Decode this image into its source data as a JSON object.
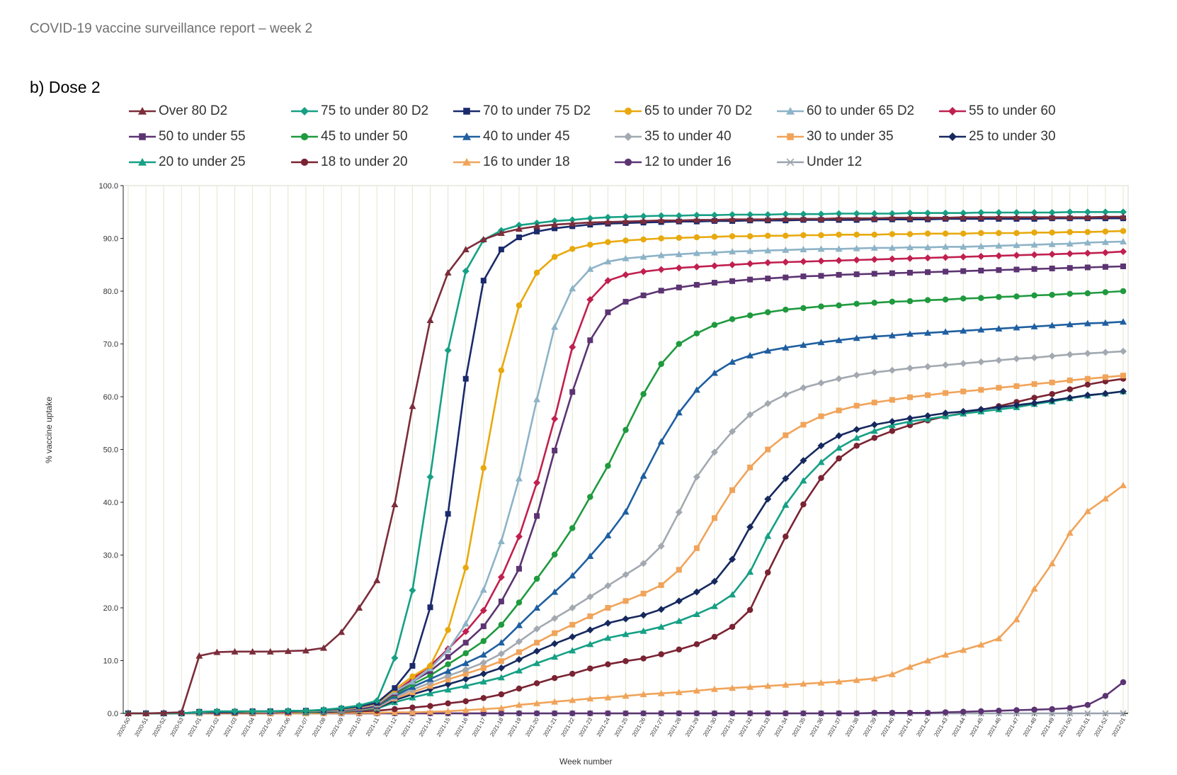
{
  "page": {
    "header": "COVID-19 vaccine surveillance report – week 2",
    "section_title": "b) Dose 2"
  },
  "chart_data": {
    "type": "line",
    "ylabel": "% vaccine uptake",
    "xlabel": "Week number",
    "ylim": [
      0,
      100
    ],
    "yticks": [
      "0.0",
      "10.0",
      "20.0",
      "30.0",
      "40.0",
      "50.0",
      "60.0",
      "70.0",
      "80.0",
      "90.0",
      "100.0"
    ],
    "grid": "vertical",
    "legend_position": "top",
    "x": [
      "2020-50",
      "2020-51",
      "2020-52",
      "2020-53",
      "2021-01",
      "2021-02",
      "2021-03",
      "2021-04",
      "2021-05",
      "2021-06",
      "2021-07",
      "2021-08",
      "2021-09",
      "2021-10",
      "2021-11",
      "2021-12",
      "2021-13",
      "2021-14",
      "2021-15",
      "2021-16",
      "2021-17",
      "2021-18",
      "2021-19",
      "2021-20",
      "2021-21",
      "2021-22",
      "2021-23",
      "2021-24",
      "2021-25",
      "2021-26",
      "2021-27",
      "2021-28",
      "2021-29",
      "2021-30",
      "2021-31",
      "2021-32",
      "2021-33",
      "2021-34",
      "2021-35",
      "2021-36",
      "2021-37",
      "2021-38",
      "2021-39",
      "2021-40",
      "2021-41",
      "2021-42",
      "2021-43",
      "2021-44",
      "2021-45",
      "2021-46",
      "2021-47",
      "2021-48",
      "2021-49",
      "2021-50",
      "2021-51",
      "2021-52",
      "2022-01"
    ],
    "series": [
      {
        "name": "Over 80 D2",
        "color": "#7b2d3a",
        "marker": "triangle",
        "values": [
          0.0,
          0.0,
          0.1,
          0.2,
          10.9,
          11.6,
          11.7,
          11.7,
          11.7,
          11.8,
          11.9,
          12.4,
          15.4,
          20.0,
          25.2,
          39.6,
          58.2,
          74.5,
          83.5,
          87.9,
          89.8,
          91.0,
          91.8,
          92.3,
          92.6,
          92.8,
          93.0,
          93.1,
          93.2,
          93.3,
          93.4,
          93.4,
          93.5,
          93.5,
          93.6,
          93.6,
          93.6,
          93.7,
          93.7,
          93.7,
          93.8,
          93.8,
          93.8,
          93.9,
          93.9,
          93.9,
          93.9,
          94.0,
          94.0,
          94.0,
          94.0,
          94.0,
          94.0,
          94.0,
          94.0,
          94.1,
          94.1
        ]
      },
      {
        "name": "75 to under 80 D2",
        "color": "#16a085",
        "marker": "diamond",
        "values": [
          0.0,
          0.0,
          0.0,
          0.0,
          0.3,
          0.4,
          0.4,
          0.4,
          0.4,
          0.5,
          0.5,
          0.7,
          1.0,
          1.5,
          2.4,
          10.5,
          23.3,
          44.8,
          68.8,
          83.8,
          89.7,
          91.5,
          92.5,
          92.9,
          93.3,
          93.5,
          93.8,
          94.0,
          94.1,
          94.2,
          94.3,
          94.3,
          94.4,
          94.4,
          94.5,
          94.5,
          94.5,
          94.6,
          94.6,
          94.6,
          94.7,
          94.7,
          94.7,
          94.7,
          94.8,
          94.8,
          94.8,
          94.8,
          94.9,
          94.9,
          94.9,
          94.9,
          94.9,
          95.0,
          95.0,
          95.0,
          95.0
        ]
      },
      {
        "name": "70 to under 75 D2",
        "color": "#1a2a6c",
        "marker": "square",
        "values": [
          0.0,
          0.0,
          0.0,
          0.0,
          0.3,
          0.3,
          0.3,
          0.4,
          0.4,
          0.4,
          0.5,
          0.6,
          0.9,
          1.3,
          2.0,
          4.8,
          9.0,
          20.1,
          37.8,
          63.4,
          82.0,
          87.9,
          90.2,
          91.3,
          91.9,
          92.3,
          92.6,
          92.8,
          92.9,
          93.0,
          93.1,
          93.2,
          93.2,
          93.3,
          93.3,
          93.4,
          93.4,
          93.4,
          93.5,
          93.5,
          93.5,
          93.5,
          93.6,
          93.6,
          93.6,
          93.6,
          93.7,
          93.7,
          93.7,
          93.7,
          93.7,
          93.7,
          93.8,
          93.8,
          93.8,
          93.8,
          93.8
        ]
      },
      {
        "name": "65 to under 70 D2",
        "color": "#e8a90e",
        "marker": "circle",
        "values": [
          0.0,
          0.0,
          0.0,
          0.0,
          0.3,
          0.3,
          0.3,
          0.3,
          0.4,
          0.4,
          0.4,
          0.6,
          0.8,
          1.2,
          1.9,
          4.5,
          7.0,
          9.0,
          15.8,
          27.6,
          46.5,
          65.0,
          77.3,
          83.5,
          86.5,
          88.0,
          88.8,
          89.3,
          89.6,
          89.8,
          90.0,
          90.1,
          90.2,
          90.3,
          90.4,
          90.4,
          90.5,
          90.5,
          90.6,
          90.6,
          90.7,
          90.7,
          90.7,
          90.8,
          90.8,
          90.9,
          90.9,
          90.9,
          91.0,
          91.0,
          91.0,
          91.1,
          91.1,
          91.2,
          91.2,
          91.3,
          91.4
        ]
      },
      {
        "name": "60 to under 65 D2",
        "color": "#8db3c7",
        "marker": "triangle",
        "values": [
          0.0,
          0.0,
          0.0,
          0.0,
          0.2,
          0.3,
          0.3,
          0.3,
          0.3,
          0.4,
          0.4,
          0.5,
          0.7,
          1.1,
          1.7,
          4.1,
          6.0,
          8.5,
          12.0,
          17.0,
          23.4,
          32.6,
          44.5,
          59.5,
          73.2,
          80.5,
          84.2,
          85.6,
          86.2,
          86.5,
          86.8,
          87.0,
          87.2,
          87.3,
          87.5,
          87.6,
          87.7,
          87.8,
          87.9,
          88.0,
          88.0,
          88.1,
          88.2,
          88.2,
          88.3,
          88.3,
          88.4,
          88.4,
          88.5,
          88.6,
          88.7,
          88.8,
          88.9,
          89.0,
          89.2,
          89.3,
          89.4
        ]
      },
      {
        "name": "55 to under 60",
        "color": "#c0204f",
        "marker": "diamond",
        "values": [
          0.0,
          0.0,
          0.0,
          0.0,
          0.2,
          0.3,
          0.3,
          0.3,
          0.3,
          0.3,
          0.4,
          0.5,
          0.7,
          1.0,
          1.6,
          4.0,
          6.5,
          9.0,
          12.2,
          15.5,
          19.5,
          25.8,
          33.5,
          43.7,
          55.8,
          69.4,
          78.4,
          82.0,
          83.1,
          83.7,
          84.1,
          84.4,
          84.6,
          84.8,
          85.0,
          85.2,
          85.4,
          85.5,
          85.6,
          85.7,
          85.8,
          85.9,
          86.0,
          86.1,
          86.2,
          86.3,
          86.4,
          86.5,
          86.6,
          86.7,
          86.8,
          86.9,
          87.0,
          87.1,
          87.2,
          87.3,
          87.5
        ]
      },
      {
        "name": "50 to under 55",
        "color": "#5c3472",
        "marker": "square",
        "values": [
          0.0,
          0.0,
          0.0,
          0.0,
          0.2,
          0.2,
          0.3,
          0.3,
          0.3,
          0.3,
          0.4,
          0.5,
          0.6,
          0.9,
          1.5,
          3.8,
          6.0,
          8.0,
          10.7,
          13.4,
          16.5,
          21.2,
          27.4,
          37.4,
          49.8,
          60.9,
          70.7,
          76.0,
          78.0,
          79.2,
          80.1,
          80.7,
          81.2,
          81.6,
          81.9,
          82.2,
          82.4,
          82.6,
          82.8,
          82.9,
          83.1,
          83.2,
          83.3,
          83.4,
          83.5,
          83.6,
          83.7,
          83.8,
          83.9,
          84.0,
          84.1,
          84.2,
          84.3,
          84.4,
          84.5,
          84.6,
          84.7
        ]
      },
      {
        "name": "45 to under 50",
        "color": "#1f9a3e",
        "marker": "circle",
        "values": [
          0.0,
          0.0,
          0.0,
          0.0,
          0.2,
          0.2,
          0.2,
          0.3,
          0.3,
          0.3,
          0.3,
          0.4,
          0.6,
          0.9,
          1.4,
          3.6,
          5.5,
          7.2,
          9.3,
          11.4,
          13.7,
          16.8,
          21.0,
          25.5,
          30.1,
          35.1,
          41.0,
          46.9,
          53.7,
          60.5,
          66.2,
          70.0,
          72.0,
          73.6,
          74.7,
          75.4,
          76.0,
          76.5,
          76.8,
          77.1,
          77.3,
          77.6,
          77.8,
          78.0,
          78.1,
          78.3,
          78.4,
          78.6,
          78.7,
          78.9,
          79.0,
          79.2,
          79.3,
          79.5,
          79.6,
          79.8,
          80.0
        ]
      },
      {
        "name": "40 to under 45",
        "color": "#1f5fa0",
        "marker": "triangle",
        "values": [
          0.0,
          0.0,
          0.0,
          0.0,
          0.2,
          0.2,
          0.2,
          0.2,
          0.3,
          0.3,
          0.3,
          0.4,
          0.6,
          0.8,
          1.3,
          3.3,
          5.0,
          6.5,
          8.0,
          9.5,
          11.1,
          13.4,
          16.7,
          20.0,
          23.0,
          26.1,
          29.8,
          33.7,
          38.2,
          45.0,
          51.5,
          57.0,
          61.3,
          64.5,
          66.6,
          67.8,
          68.7,
          69.3,
          69.8,
          70.3,
          70.7,
          71.1,
          71.4,
          71.6,
          71.9,
          72.1,
          72.3,
          72.5,
          72.7,
          72.9,
          73.1,
          73.3,
          73.5,
          73.7,
          73.9,
          74.0,
          74.2
        ]
      },
      {
        "name": "35 to under 40",
        "color": "#a3a9b0",
        "marker": "diamond",
        "values": [
          0.0,
          0.0,
          0.0,
          0.0,
          0.2,
          0.2,
          0.2,
          0.2,
          0.2,
          0.3,
          0.3,
          0.4,
          0.5,
          0.8,
          1.2,
          3.0,
          4.5,
          5.8,
          7.1,
          8.3,
          9.6,
          11.3,
          13.6,
          16.0,
          18.0,
          20.0,
          22.1,
          24.2,
          26.3,
          28.4,
          31.7,
          38.1,
          44.8,
          49.5,
          53.4,
          56.6,
          58.7,
          60.4,
          61.7,
          62.6,
          63.4,
          64.1,
          64.6,
          65.0,
          65.4,
          65.7,
          66.0,
          66.3,
          66.6,
          66.9,
          67.2,
          67.4,
          67.7,
          68.0,
          68.2,
          68.4,
          68.6
        ]
      },
      {
        "name": "30 to under 35",
        "color": "#f0a45a",
        "marker": "square",
        "values": [
          0.0,
          0.0,
          0.0,
          0.0,
          0.2,
          0.2,
          0.2,
          0.2,
          0.2,
          0.2,
          0.3,
          0.4,
          0.5,
          0.7,
          1.1,
          2.8,
          4.0,
          5.2,
          6.4,
          7.5,
          8.6,
          9.9,
          11.6,
          13.4,
          15.2,
          16.8,
          18.4,
          20.0,
          21.3,
          22.7,
          24.3,
          27.2,
          31.3,
          37.0,
          42.3,
          46.6,
          50.0,
          52.7,
          54.7,
          56.3,
          57.4,
          58.3,
          58.9,
          59.4,
          59.9,
          60.3,
          60.7,
          61.0,
          61.3,
          61.7,
          62.0,
          62.4,
          62.7,
          63.1,
          63.4,
          63.7,
          64.0
        ]
      },
      {
        "name": "25 to under 30",
        "color": "#16295e",
        "marker": "diamond",
        "values": [
          0.0,
          0.0,
          0.0,
          0.0,
          0.2,
          0.2,
          0.2,
          0.2,
          0.2,
          0.2,
          0.3,
          0.3,
          0.5,
          0.7,
          1.0,
          2.5,
          3.6,
          4.6,
          5.5,
          6.5,
          7.5,
          8.6,
          10.2,
          11.8,
          13.2,
          14.5,
          15.8,
          17.1,
          17.9,
          18.6,
          19.7,
          21.3,
          23.0,
          25.0,
          29.2,
          35.3,
          40.6,
          44.5,
          47.9,
          50.7,
          52.6,
          53.8,
          54.7,
          55.3,
          55.9,
          56.4,
          56.9,
          57.2,
          57.6,
          58.0,
          58.4,
          58.8,
          59.3,
          59.8,
          60.3,
          60.6,
          61.0
        ]
      },
      {
        "name": "20 to under 25",
        "color": "#16a085",
        "marker": "triangle",
        "values": [
          0.0,
          0.0,
          0.0,
          0.0,
          0.1,
          0.2,
          0.2,
          0.2,
          0.2,
          0.2,
          0.2,
          0.3,
          0.4,
          0.6,
          0.9,
          2.1,
          3.0,
          3.8,
          4.5,
          5.2,
          6.0,
          6.8,
          8.1,
          9.5,
          10.7,
          11.9,
          13.1,
          14.3,
          15.0,
          15.6,
          16.4,
          17.5,
          18.8,
          20.3,
          22.5,
          26.8,
          33.6,
          39.5,
          44.1,
          47.6,
          50.3,
          52.2,
          53.5,
          54.6,
          55.3,
          55.8,
          56.3,
          56.8,
          57.2,
          57.6,
          58.0,
          58.6,
          59.1,
          59.7,
          60.2,
          60.6,
          61.0
        ]
      },
      {
        "name": "18 to under 20",
        "color": "#7a2332",
        "marker": "circle",
        "values": [
          0.0,
          0.0,
          0.0,
          0.0,
          0.1,
          0.1,
          0.1,
          0.1,
          0.1,
          0.2,
          0.2,
          0.2,
          0.3,
          0.4,
          0.5,
          0.8,
          1.1,
          1.4,
          1.9,
          2.3,
          2.9,
          3.6,
          4.7,
          5.7,
          6.7,
          7.5,
          8.5,
          9.3,
          9.9,
          10.4,
          11.2,
          12.1,
          13.1,
          14.5,
          16.4,
          19.6,
          26.7,
          33.5,
          39.6,
          44.6,
          48.3,
          50.7,
          52.2,
          53.5,
          54.6,
          55.5,
          56.3,
          56.9,
          57.5,
          58.2,
          59.0,
          59.8,
          60.5,
          61.4,
          62.3,
          62.9,
          63.4
        ]
      },
      {
        "name": "16 to under 18",
        "color": "#f0a45a",
        "marker": "triangle",
        "values": [
          0.0,
          0.0,
          0.0,
          0.0,
          0.0,
          0.0,
          0.0,
          0.0,
          0.0,
          0.0,
          0.0,
          0.0,
          0.1,
          0.1,
          0.1,
          0.2,
          0.2,
          0.3,
          0.4,
          0.6,
          0.8,
          1.0,
          1.6,
          1.9,
          2.2,
          2.5,
          2.8,
          3.0,
          3.3,
          3.6,
          3.8,
          4.0,
          4.3,
          4.6,
          4.8,
          5.0,
          5.2,
          5.4,
          5.6,
          5.8,
          6.0,
          6.3,
          6.6,
          7.4,
          8.8,
          10.0,
          11.1,
          12.0,
          13.0,
          14.2,
          17.8,
          23.6,
          28.4,
          34.2,
          38.3,
          40.7,
          43.2
        ]
      },
      {
        "name": "12 to under 16",
        "color": "#5c3472",
        "marker": "circle",
        "values": [
          0.0,
          0.0,
          0.0,
          0.0,
          0.0,
          0.0,
          0.0,
          0.0,
          0.0,
          0.0,
          0.0,
          0.0,
          0.0,
          0.0,
          0.0,
          0.0,
          0.0,
          0.0,
          0.0,
          0.0,
          0.0,
          0.0,
          0.0,
          0.0,
          0.0,
          0.0,
          0.0,
          0.0,
          0.0,
          0.0,
          0.0,
          0.0,
          0.0,
          0.0,
          0.0,
          0.0,
          0.0,
          0.0,
          0.0,
          0.0,
          0.0,
          0.0,
          0.1,
          0.1,
          0.1,
          0.1,
          0.2,
          0.3,
          0.4,
          0.5,
          0.6,
          0.7,
          0.8,
          1.0,
          1.6,
          3.3,
          5.9
        ]
      },
      {
        "name": "Under 12",
        "color": "#9aa3ad",
        "marker": "x",
        "values": [
          0.0,
          0.0,
          0.0,
          0.0,
          0.0,
          0.0,
          0.0,
          0.0,
          0.0,
          0.0,
          0.0,
          0.0,
          0.0,
          0.0,
          0.0,
          0.0,
          0.0,
          0.0,
          0.0,
          0.0,
          0.0,
          0.0,
          0.0,
          0.0,
          0.0,
          0.0,
          0.0,
          0.0,
          0.0,
          0.0,
          0.0,
          0.0,
          0.0,
          0.0,
          0.0,
          0.0,
          0.0,
          0.0,
          0.0,
          0.0,
          0.0,
          0.0,
          0.0,
          0.0,
          0.0,
          0.0,
          0.0,
          0.0,
          0.0,
          0.0,
          0.0,
          0.0,
          0.0,
          0.0,
          0.0,
          0.0,
          0.0
        ]
      }
    ]
  }
}
